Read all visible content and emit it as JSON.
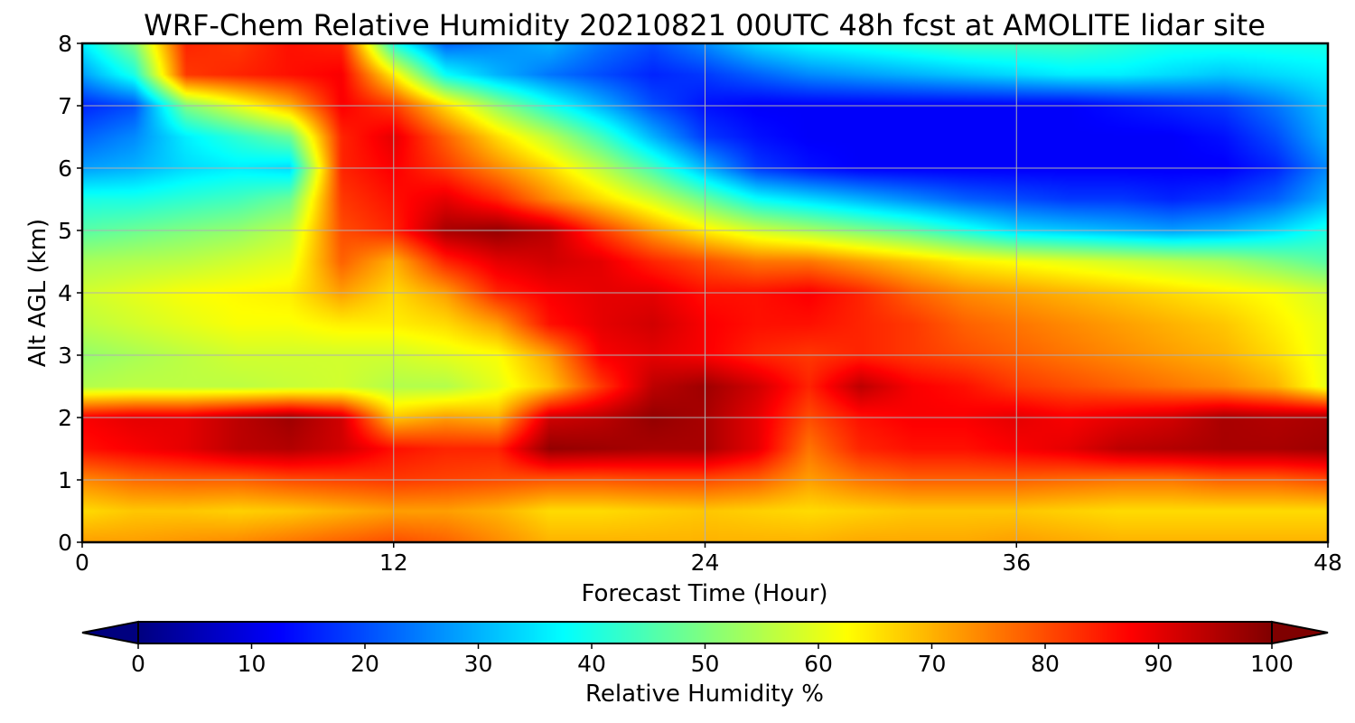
{
  "chart_data": {
    "type": "heatmap",
    "title": "WRF-Chem Relative Humidity 20210821 00UTC 48h fcst at AMOLITE lidar site",
    "xlabel": "Forecast Time (Hour)",
    "ylabel": "Alt AGL (km)",
    "xlim": [
      0,
      48
    ],
    "ylim": [
      0,
      8
    ],
    "xticks": [
      "0",
      "12",
      "24",
      "36",
      "48"
    ],
    "yticks": [
      "0",
      "1",
      "2",
      "3",
      "4",
      "5",
      "6",
      "7",
      "8"
    ],
    "grid": true,
    "colormap": "jet",
    "colorbar": {
      "label": "Relative Humidity %",
      "range": [
        0,
        100
      ],
      "ticks": [
        "0",
        "10",
        "20",
        "30",
        "40",
        "50",
        "60",
        "70",
        "80",
        "90",
        "100"
      ],
      "extend": "both",
      "orientation": "horizontal"
    },
    "x": [
      0,
      2,
      4,
      6,
      8,
      10,
      12,
      14,
      16,
      18,
      20,
      22,
      24,
      26,
      28,
      30,
      32,
      34,
      36,
      38,
      40,
      42,
      44,
      46,
      48
    ],
    "y": [
      0,
      0.5,
      1,
      1.5,
      2,
      2.5,
      3,
      3.5,
      4,
      4.5,
      5,
      5.5,
      6,
      6.5,
      7,
      7.5,
      8
    ],
    "z": [
      [
        72,
        72,
        73,
        74,
        76,
        78,
        80,
        78,
        74,
        70,
        70,
        70,
        70,
        70,
        70,
        71,
        71,
        71,
        72,
        71,
        70,
        70,
        70,
        70,
        70
      ],
      [
        66,
        68,
        68,
        67,
        68,
        70,
        72,
        72,
        70,
        66,
        66,
        67,
        68,
        67,
        66,
        67,
        68,
        68,
        68,
        67,
        66,
        66,
        66,
        66,
        66
      ],
      [
        74,
        77,
        78,
        78,
        80,
        81,
        82,
        81,
        80,
        79,
        79,
        80,
        80,
        78,
        72,
        76,
        78,
        78,
        78,
        77,
        76,
        76,
        78,
        78,
        80
      ],
      [
        86,
        88,
        90,
        94,
        95,
        92,
        86,
        84,
        84,
        98,
        97,
        96,
        96,
        90,
        76,
        84,
        86,
        86,
        88,
        90,
        94,
        95,
        96,
        96,
        97
      ],
      [
        88,
        90,
        90,
        94,
        97,
        92,
        68,
        72,
        70,
        92,
        94,
        98,
        96,
        90,
        80,
        86,
        88,
        88,
        90,
        88,
        90,
        92,
        96,
        95,
        96
      ],
      [
        55,
        56,
        56,
        56,
        57,
        58,
        55,
        55,
        60,
        68,
        82,
        94,
        97,
        92,
        84,
        94,
        88,
        86,
        82,
        80,
        78,
        76,
        74,
        70,
        60
      ],
      [
        52,
        54,
        56,
        58,
        58,
        58,
        58,
        60,
        62,
        72,
        88,
        90,
        88,
        84,
        82,
        84,
        82,
        80,
        78,
        76,
        74,
        72,
        70,
        66,
        60
      ],
      [
        56,
        58,
        60,
        62,
        62,
        64,
        64,
        66,
        72,
        86,
        90,
        92,
        88,
        86,
        86,
        84,
        82,
        78,
        76,
        74,
        72,
        70,
        68,
        64,
        60
      ],
      [
        58,
        60,
        62,
        63,
        64,
        72,
        66,
        72,
        84,
        88,
        90,
        90,
        86,
        86,
        88,
        84,
        78,
        74,
        72,
        70,
        68,
        66,
        64,
        62,
        58
      ],
      [
        54,
        55,
        56,
        58,
        60,
        78,
        70,
        84,
        90,
        92,
        90,
        84,
        80,
        76,
        76,
        72,
        68,
        64,
        62,
        60,
        58,
        56,
        54,
        50,
        46
      ],
      [
        46,
        48,
        50,
        52,
        56,
        80,
        84,
        96,
        98,
        94,
        82,
        72,
        64,
        58,
        54,
        50,
        46,
        40,
        34,
        32,
        30,
        28,
        30,
        34,
        40
      ],
      [
        40,
        40,
        42,
        44,
        48,
        82,
        86,
        90,
        84,
        74,
        66,
        58,
        48,
        38,
        34,
        30,
        26,
        22,
        20,
        18,
        18,
        16,
        18,
        22,
        30
      ],
      [
        28,
        30,
        34,
        36,
        34,
        84,
        88,
        82,
        74,
        66,
        56,
        44,
        30,
        18,
        14,
        12,
        12,
        12,
        12,
        12,
        12,
        12,
        12,
        16,
        26
      ],
      [
        22,
        26,
        36,
        42,
        48,
        84,
        90,
        78,
        66,
        56,
        44,
        30,
        18,
        14,
        12,
        12,
        12,
        12,
        12,
        12,
        12,
        12,
        14,
        20,
        30
      ],
      [
        16,
        20,
        50,
        60,
        70,
        88,
        82,
        66,
        52,
        40,
        30,
        20,
        14,
        12,
        12,
        12,
        12,
        12,
        12,
        12,
        14,
        16,
        18,
        24,
        32
      ],
      [
        28,
        40,
        82,
        84,
        86,
        88,
        64,
        38,
        30,
        24,
        20,
        16,
        18,
        22,
        26,
        28,
        30,
        32,
        34,
        36,
        36,
        34,
        32,
        34,
        36
      ],
      [
        36,
        50,
        84,
        82,
        86,
        84,
        40,
        22,
        26,
        30,
        24,
        20,
        26,
        34,
        38,
        40,
        42,
        44,
        44,
        44,
        42,
        40,
        40,
        40,
        40
      ]
    ]
  }
}
